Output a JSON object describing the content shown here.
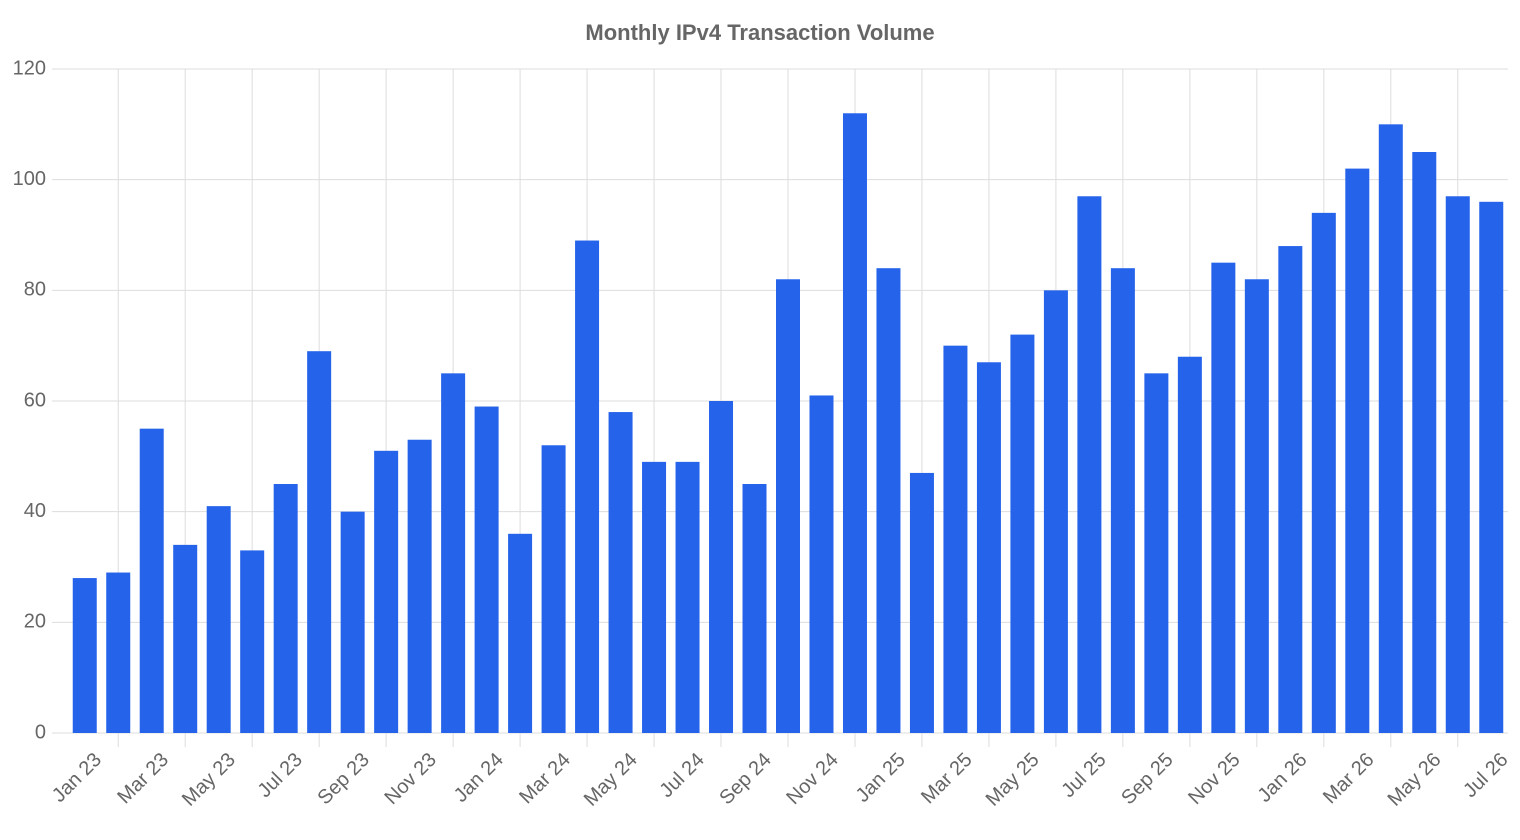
{
  "chart_data": {
    "type": "bar",
    "title": "Monthly IPv4 Transaction Volume",
    "categories": [
      "Jan 23",
      null,
      "Mar 23",
      null,
      "May 23",
      null,
      "Jul 23",
      null,
      "Sep 23",
      null,
      "Nov 23",
      null,
      "Jan 24",
      null,
      "Mar 24",
      null,
      "May 24",
      null,
      "Jul 24",
      null,
      "Sep 24",
      null,
      "Nov 24",
      null,
      "Jan 25",
      null,
      "Mar 25",
      null,
      "May 25",
      null,
      "Jul 25",
      null,
      "Sep 25",
      null,
      "Nov 25",
      null,
      "Jan 26",
      null,
      "Mar 26",
      null,
      "May 26",
      null,
      "Jul 26"
    ],
    "values": [
      28,
      29,
      55,
      34,
      41,
      33,
      45,
      69,
      40,
      51,
      53,
      65,
      59,
      36,
      52,
      89,
      58,
      49,
      49,
      60,
      45,
      82,
      61,
      112,
      84,
      47,
      70,
      67,
      72,
      80,
      97,
      84,
      65,
      68,
      85,
      82,
      88,
      94,
      102,
      110,
      105,
      97,
      96
    ],
    "color": "#2563eb",
    "ylim": [
      0,
      120
    ],
    "yticks": [
      0,
      20,
      40,
      60,
      80,
      100,
      120
    ],
    "grid": true
  }
}
